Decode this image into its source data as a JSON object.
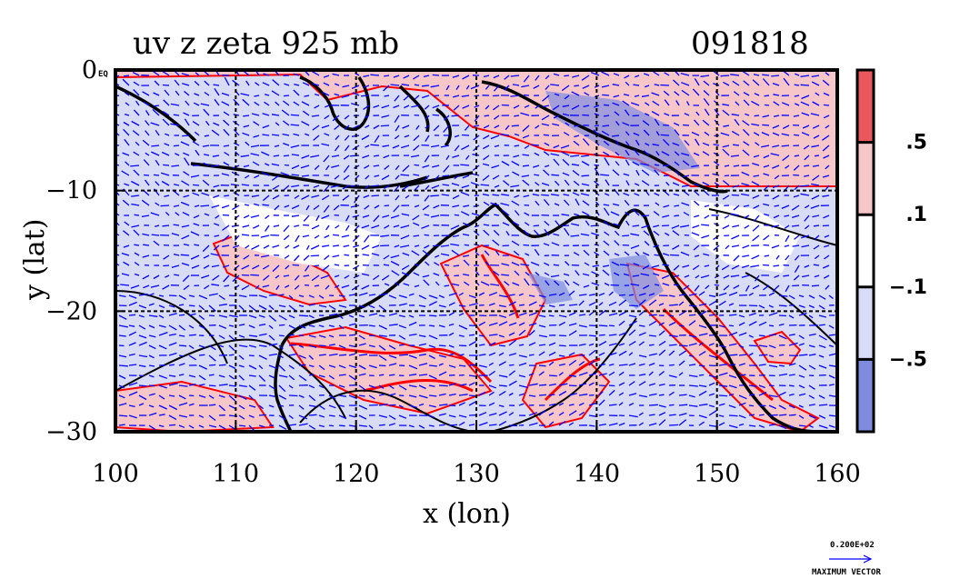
{
  "chart_data": {
    "type": "heatmap",
    "title_left": "uv z zeta 925 mb",
    "title_right": "091818",
    "xlabel": "x (lon)",
    "ylabel": "y (lat)",
    "xlim": [
      100,
      160
    ],
    "ylim": [
      -30,
      0
    ],
    "x_ticks": [
      100,
      110,
      120,
      130,
      140,
      150,
      160
    ],
    "y_ticks": [
      0,
      -10,
      -20,
      -30
    ],
    "x_tick_labels": [
      "100",
      "110",
      "120",
      "130",
      "140",
      "150",
      "160"
    ],
    "y_tick_labels": [
      "0",
      "−10",
      "−20",
      "−30"
    ],
    "y_top_suffix": "EQ",
    "grid": true,
    "colorbar": {
      "levels": [
        ".5",
        ".1",
        "−.1",
        "−.5"
      ],
      "colors": [
        "#e8585c",
        "#f7c6c8",
        "#ffffff",
        "#d8dcf6",
        "#7f8bdf"
      ]
    },
    "vector_key": {
      "value": "0.200E+02",
      "label": "MAXIMUM VECTOR"
    },
    "colors": {
      "positive_fill": "#f7c6c8",
      "negative_fill": "#d8dcf6",
      "strong_negative": "#7f8bdf",
      "positive_line": "#ff0000",
      "vectors": "#0000ff",
      "coast": "#000000"
    }
  }
}
